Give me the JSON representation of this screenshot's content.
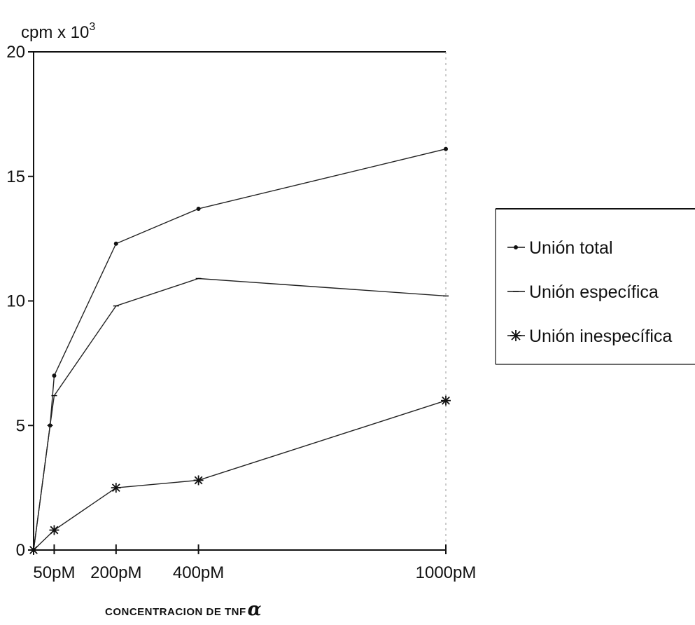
{
  "chart_data": {
    "type": "line",
    "ylabel": "cpm x 10",
    "ylabel_superscript": "3",
    "xlabel": "CONCENTRACION DE TNF",
    "xlabel_symbol": "α",
    "x": [
      0,
      50,
      200,
      400,
      1000
    ],
    "x_tick_values": [
      0,
      50,
      200,
      400,
      1000
    ],
    "x_tick_labels": [
      "",
      "50pM",
      "200pM",
      "400pM",
      "1000pM"
    ],
    "y_ticks": [
      0,
      5,
      10,
      15,
      20
    ],
    "y_tick_labels": [
      "0",
      "5",
      "10",
      "15",
      "20"
    ],
    "xlim": [
      0,
      1000
    ],
    "ylim": [
      0,
      20
    ],
    "grid": false,
    "legend_position": "right",
    "series": [
      {
        "name": "Unión total",
        "marker": "dot",
        "points": [
          [
            0,
            0
          ],
          [
            40,
            5.0
          ],
          [
            50,
            7.0
          ],
          [
            200,
            12.3
          ],
          [
            400,
            13.7
          ],
          [
            1000,
            16.1
          ]
        ]
      },
      {
        "name": "Unión específica",
        "marker": "dash",
        "points": [
          [
            0,
            0
          ],
          [
            40,
            5.0
          ],
          [
            50,
            6.2
          ],
          [
            200,
            9.8
          ],
          [
            400,
            10.9
          ],
          [
            1000,
            10.2
          ]
        ]
      },
      {
        "name": "Unión inespecífica",
        "marker": "star",
        "points": [
          [
            0,
            0
          ],
          [
            50,
            0.8
          ],
          [
            200,
            2.5
          ],
          [
            400,
            2.8
          ],
          [
            1000,
            6.0
          ]
        ]
      }
    ]
  }
}
